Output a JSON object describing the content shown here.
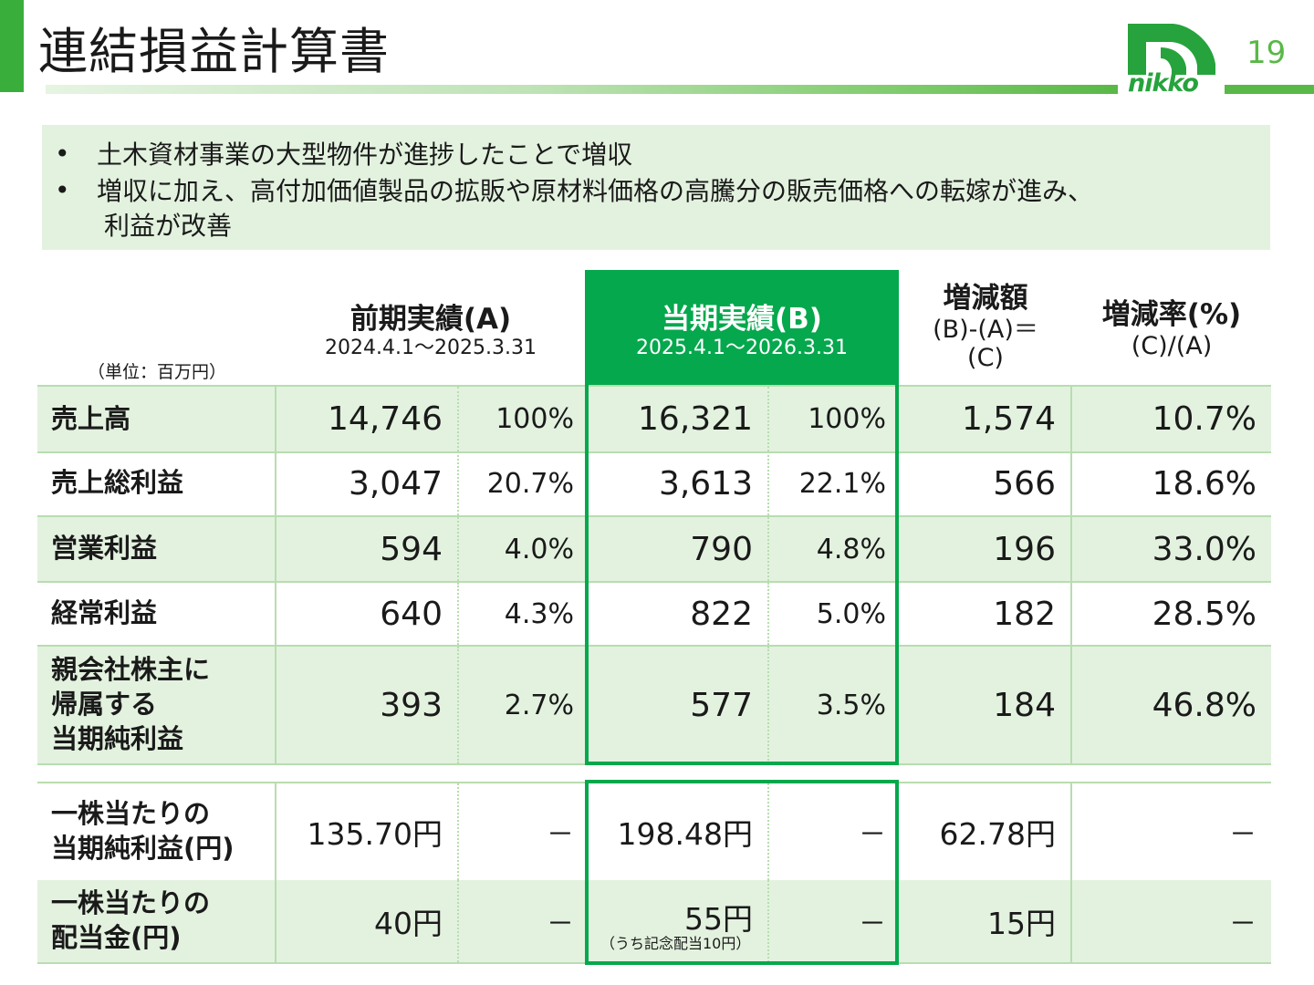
{
  "header": {
    "title": "連結損益計算書",
    "page_number": "19",
    "logo_text": "nikko",
    "brand_color": "#05a84d"
  },
  "summary": {
    "bullets": [
      "土木資材事業の大型物件が進捗したことで増収",
      "増収に加え、高付加価値製品の拡販や原材料価格の高騰分の販売価格への転嫁が進み、",
      "利益が改善"
    ]
  },
  "table": {
    "unit": "（単位：百万円）",
    "columns": {
      "prev_title": "前期実績(A)",
      "prev_period": "2024.4.1～2025.3.31",
      "cur_title": "当期実績(B)",
      "cur_period": "2025.4.1～2026.3.31",
      "diff_title": "増減額",
      "diff_sub1": "(B)-(A)＝",
      "diff_sub2": "(C)",
      "rate_title": "増減率(%)",
      "rate_sub": "(C)/(A)"
    },
    "rows": [
      {
        "label": "売上高",
        "prev": "14,746",
        "prev_pct": "100%",
        "cur": "16,321",
        "cur_pct": "100%",
        "diff": "1,574",
        "rate": "10.7%"
      },
      {
        "label": "売上総利益",
        "prev": "3,047",
        "prev_pct": "20.7%",
        "cur": "3,613",
        "cur_pct": "22.1%",
        "diff": "566",
        "rate": "18.6%"
      },
      {
        "label": "営業利益",
        "prev": "594",
        "prev_pct": "4.0%",
        "cur": "790",
        "cur_pct": "4.8%",
        "diff": "196",
        "rate": "33.0%"
      },
      {
        "label": "経常利益",
        "prev": "640",
        "prev_pct": "4.3%",
        "cur": "822",
        "cur_pct": "5.0%",
        "diff": "182",
        "rate": "28.5%"
      },
      {
        "label_lines": [
          "親会社株主に",
          "帰属する",
          "当期純利益"
        ],
        "prev": "393",
        "prev_pct": "2.7%",
        "cur": "577",
        "cur_pct": "3.5%",
        "diff": "184",
        "rate": "46.8%"
      }
    ],
    "per_share": [
      {
        "label_lines": [
          "一株当たりの",
          "当期純利益(円)"
        ],
        "prev": "135.70円",
        "prev_pct": "－",
        "cur": "198.48円",
        "cur_pct": "－",
        "diff": "62.78円",
        "rate": "－"
      },
      {
        "label_lines": [
          "一株当たりの",
          "配当金(円)"
        ],
        "prev": "40円",
        "prev_pct": "－",
        "cur": "55円",
        "cur_note": "（うち記念配当10円）",
        "cur_pct": "－",
        "diff": "15円",
        "rate": "－"
      }
    ]
  }
}
